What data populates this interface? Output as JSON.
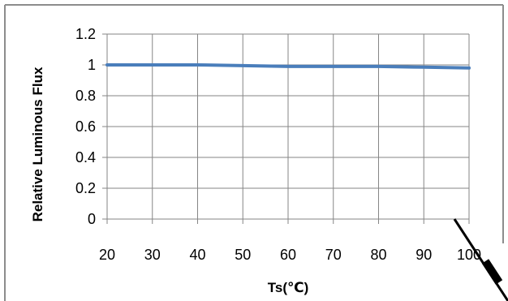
{
  "chart_data": {
    "type": "line",
    "title": "",
    "xlabel": "Ts(℃)",
    "ylabel": "Relative Luminous Flux",
    "xlim": [
      20,
      100
    ],
    "ylim": [
      0,
      1.2
    ],
    "x_ticks": [
      "20",
      "30",
      "40",
      "50",
      "60",
      "70",
      "80",
      "90",
      "100"
    ],
    "y_ticks": [
      "0",
      "0.2",
      "0.4",
      "0.6",
      "0.8",
      "1",
      "1.2"
    ],
    "grid": true,
    "legend": "none",
    "series": [
      {
        "color": "#4a7ebb",
        "x": [
          20,
          30,
          40,
          50,
          60,
          70,
          80,
          90,
          100
        ],
        "y": [
          1.0,
          1.0,
          1.0,
          0.995,
          0.99,
          0.99,
          0.99,
          0.985,
          0.98
        ]
      }
    ]
  },
  "colors": {
    "frame": "#8c8c8c",
    "grid": "#868686",
    "series": "#4a7ebb",
    "watermark": "#000000"
  }
}
